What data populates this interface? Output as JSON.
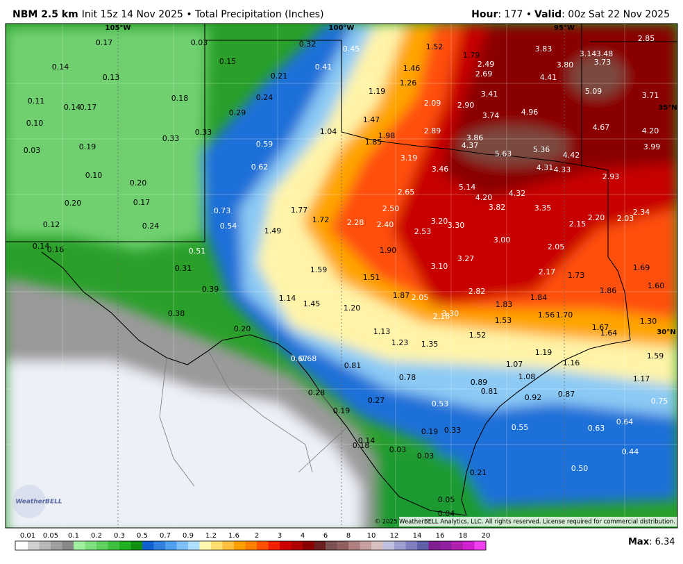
{
  "header": {
    "model": "NBM 2.5 km",
    "subtitle": "Init 15z 14 Nov 2025 • Total Precipitation (Inches)",
    "hour_label": "Hour",
    "hour": ": 177 •",
    "valid_label": "Valid",
    "valid": ": 00z Sat 22 Nov 2025"
  },
  "map": {
    "grid_labels": [
      "105°W",
      "100°W",
      "95°W",
      "35°N",
      "30°N"
    ],
    "points": [
      "0.17",
      "0.03",
      "0.32",
      "0.45",
      "1.52",
      "1.79",
      "3.83",
      "3.14",
      "3.48",
      "2.85",
      "0.14",
      "0.15",
      "0.41",
      "1.46",
      "2.49",
      "3.80",
      "3.73",
      "0.13",
      "0.21",
      "1.26",
      "2.69",
      "4.41",
      "0.11",
      "0.14",
      "0.17",
      "0.18",
      "0.24",
      "1.19",
      "3.41",
      "5.09",
      "3.71",
      "0.10",
      "0.29",
      "2.09",
      "2.90",
      "4.96",
      "3.74",
      "1.47",
      "2.89",
      "4.67",
      "4.20",
      "0.33",
      "0.33",
      "1.04",
      "1.98",
      "3.86",
      "0.03",
      "0.19",
      "0.59",
      "1.85",
      "4.37",
      "5.63",
      "5.36",
      "4.42",
      "3.99",
      "0.62",
      "3.19",
      "3.46",
      "4.31",
      "4.33",
      "0.10",
      "2.93",
      "0.20",
      "5.14",
      "2.65",
      "4.32",
      "4.20",
      "0.17",
      "0.20",
      "1.77",
      "2.50",
      "3.82",
      "3.35",
      "2.34",
      "0.73",
      "1.72",
      "2.28",
      "2.40",
      "3.20",
      "3.30",
      "2.15",
      "2.20",
      "2.03",
      "0.12",
      "0.24",
      "0.54",
      "1.49",
      "2.53",
      "3.00",
      "0.14",
      "0.16",
      "0.51",
      "1.90",
      "2.05",
      "3.27",
      "1.59",
      "3.10",
      "0.31",
      "1.69",
      "2.17",
      "1.73",
      "1.51",
      "1.60",
      "0.39",
      "1.86",
      "2.82",
      "1.14",
      "1.87",
      "2.05",
      "1.84",
      "1.45",
      "1.83",
      "1.20",
      "0.38",
      "2.18",
      "3.30",
      "1.56",
      "1.70",
      "1.53",
      "1.30",
      "0.20",
      "1.13",
      "1.67",
      "1.64",
      "1.52",
      "1.23",
      "1.35",
      "1.19",
      "1.59",
      "0.67",
      "0.68",
      "0.81",
      "1.07",
      "1.16",
      "0.78",
      "1.08",
      "1.17",
      "0.89",
      "0.28",
      "0.81",
      "0.92",
      "0.87",
      "0.75",
      "0.27",
      "0.53",
      "0.19",
      "0.64",
      "0.55",
      "0.63",
      "0.19",
      "0.33",
      "0.14",
      "0.18",
      "0.03",
      "0.03",
      "0.44",
      "0.50",
      "0.21",
      "0.05",
      "0.04"
    ],
    "logo": "WeatherBELL",
    "copyright": "© 2025 WeatherBELL Analytics, LLC. All rights reserved. License required for commercial distribution."
  },
  "colorbar": {
    "labels": [
      "0.01",
      "0.05",
      "0.1",
      "0.2",
      "0.3",
      "0.5",
      "0.7",
      "0.9",
      "1.2",
      "1.6",
      "2",
      "3",
      "4",
      "6",
      "8",
      "10",
      "12",
      "14",
      "16",
      "18",
      "20"
    ],
    "colors": [
      "#ffffff",
      "#d0d0d0",
      "#b8b8b8",
      "#a0a0a0",
      "#888888",
      "#a0f0a0",
      "#80e080",
      "#60d060",
      "#40c040",
      "#20b020",
      "#109010",
      "#1060d0",
      "#3080e0",
      "#50a0f0",
      "#80c0f8",
      "#b0e0ff",
      "#fff8b0",
      "#ffe070",
      "#ffc040",
      "#ffa000",
      "#ff8000",
      "#ff5000",
      "#f02000",
      "#d00000",
      "#b00000",
      "#8a0000",
      "#6a2020",
      "#7a5050",
      "#906060",
      "#b08080",
      "#c8a0a0",
      "#d8c0c0",
      "#c0c0e0",
      "#a0a0d0",
      "#8080c0",
      "#6060a8",
      "#802090",
      "#9020a0",
      "#b020b0",
      "#d020d0",
      "#f040f0"
    ]
  },
  "max": {
    "label": "Max",
    "value": ": 6.34"
  }
}
